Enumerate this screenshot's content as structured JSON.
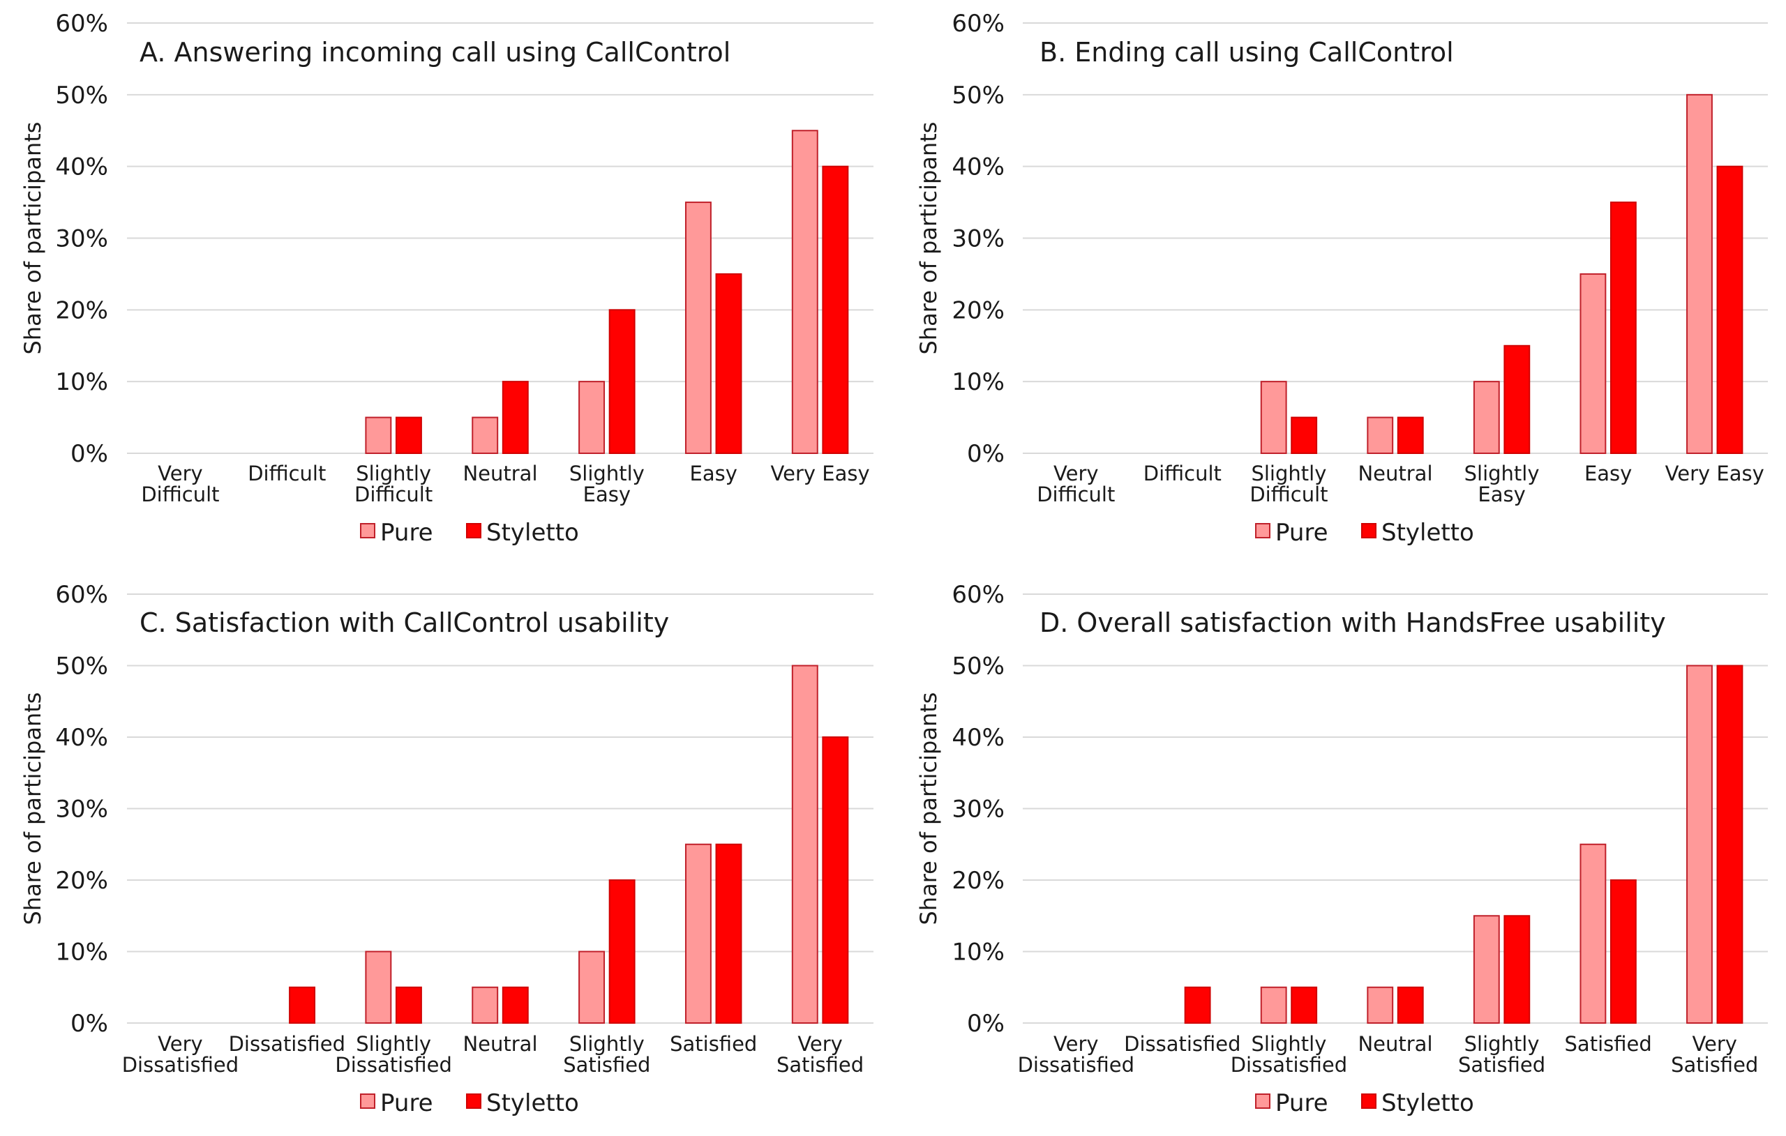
{
  "colors": {
    "pure": "#FF9999",
    "pure_stroke": "#C0202A",
    "styletto": "#FF0000",
    "styletto_stroke": "#D00000",
    "grid": "#D9D9D9"
  },
  "chart_data": [
    {
      "type": "bar",
      "title": "A. Answering incoming call using CallControl",
      "ylabel": "Share of participants",
      "ylim": [
        0,
        60
      ],
      "yticks": [
        "0%",
        "10%",
        "20%",
        "30%",
        "40%",
        "50%",
        "60%"
      ],
      "categories": [
        [
          "Very",
          "Difficult"
        ],
        [
          "Difficult"
        ],
        [
          "Slightly",
          "Difficult"
        ],
        [
          "Neutral"
        ],
        [
          "Slightly",
          "Easy"
        ],
        [
          "Easy"
        ],
        [
          "Very Easy"
        ]
      ],
      "series": [
        {
          "name": "Pure",
          "values": [
            0,
            0,
            5,
            5,
            10,
            35,
            45
          ]
        },
        {
          "name": "Styletto",
          "values": [
            0,
            0,
            5,
            10,
            20,
            25,
            40
          ]
        }
      ],
      "legend": "bottom"
    },
    {
      "type": "bar",
      "title": "B. Ending call using CallControl",
      "ylabel": "Share of participants",
      "ylim": [
        0,
        60
      ],
      "yticks": [
        "0%",
        "10%",
        "20%",
        "30%",
        "40%",
        "50%",
        "60%"
      ],
      "categories": [
        [
          "Very",
          "Difficult"
        ],
        [
          "Difficult"
        ],
        [
          "Slightly",
          "Difficult"
        ],
        [
          "Neutral"
        ],
        [
          "Slightly",
          "Easy"
        ],
        [
          "Easy"
        ],
        [
          "Very Easy"
        ]
      ],
      "series": [
        {
          "name": "Pure",
          "values": [
            0,
            0,
            10,
            5,
            10,
            25,
            50
          ]
        },
        {
          "name": "Styletto",
          "values": [
            0,
            0,
            5,
            5,
            15,
            35,
            40
          ]
        }
      ],
      "legend": "bottom"
    },
    {
      "type": "bar",
      "title": "C. Satisfaction with CallControl usability",
      "ylabel": "Share of participants",
      "ylim": [
        0,
        60
      ],
      "yticks": [
        "0%",
        "10%",
        "20%",
        "30%",
        "40%",
        "50%",
        "60%"
      ],
      "categories": [
        [
          "Very",
          "Dissatisfied"
        ],
        [
          "Dissatisfied"
        ],
        [
          "Slightly",
          "Dissatisfied"
        ],
        [
          "Neutral"
        ],
        [
          "Slightly",
          "Satisfied"
        ],
        [
          "Satisfied"
        ],
        [
          "Very",
          "Satisfied"
        ]
      ],
      "series": [
        {
          "name": "Pure",
          "values": [
            0,
            0,
            10,
            5,
            10,
            25,
            50
          ]
        },
        {
          "name": "Styletto",
          "values": [
            0,
            5,
            5,
            5,
            20,
            25,
            40
          ]
        }
      ],
      "legend": "bottom"
    },
    {
      "type": "bar",
      "title": "D. Overall satisfaction with HandsFree usability",
      "ylabel": "Share of participants",
      "ylim": [
        0,
        60
      ],
      "yticks": [
        "0%",
        "10%",
        "20%",
        "30%",
        "40%",
        "50%",
        "60%"
      ],
      "categories": [
        [
          "Very",
          "Dissatisfied"
        ],
        [
          "Dissatisfied"
        ],
        [
          "Slightly",
          "Dissatisfied"
        ],
        [
          "Neutral"
        ],
        [
          "Slightly",
          "Satisfied"
        ],
        [
          "Satisfied"
        ],
        [
          "Very",
          "Satisfied"
        ]
      ],
      "series": [
        {
          "name": "Pure",
          "values": [
            0,
            0,
            5,
            5,
            15,
            25,
            50
          ]
        },
        {
          "name": "Styletto",
          "values": [
            0,
            5,
            5,
            5,
            15,
            20,
            50
          ]
        }
      ],
      "legend": "bottom"
    }
  ]
}
